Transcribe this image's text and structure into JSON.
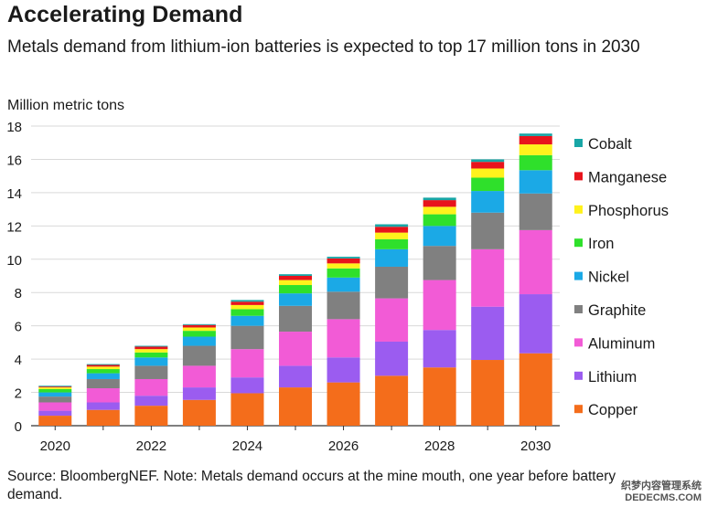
{
  "title": "Accelerating Demand",
  "subtitle": "Metals demand from lithium-ion batteries is expected to top 17 million tons in 2030",
  "source": "Source: BloombergNEF. Note: Metals demand occurs at the mine mouth, one year before battery demand.",
  "watermark": {
    "line1": "织梦内容管理系统",
    "line2": "DEDECMS.COM"
  },
  "colors": {
    "Copper": "#f46d1b",
    "Lithium": "#9b5cf0",
    "Aluminum": "#f25bd6",
    "Graphite": "#808080",
    "Nickel": "#1ba9e6",
    "Iron": "#2fe02b",
    "Phosphorus": "#fff21c",
    "Manganese": "#e8141c",
    "Cobalt": "#18a6a6",
    "grid": "#d9d9d9",
    "axis": "#333333"
  },
  "chart_data": {
    "type": "bar",
    "stacked": true,
    "title": "Accelerating Demand",
    "ylabel": "Million metric tons",
    "xlabel": "",
    "ylim": [
      0,
      18
    ],
    "yticks": [
      0,
      2,
      4,
      6,
      8,
      10,
      12,
      14,
      16,
      18
    ],
    "categories": [
      "2020",
      "2021",
      "2022",
      "2023",
      "2024",
      "2025",
      "2026",
      "2027",
      "2028",
      "2029",
      "2030"
    ],
    "xtick_labels": [
      "2020",
      "",
      "2022",
      "",
      "2024",
      "",
      "2026",
      "",
      "2028",
      "",
      "2030"
    ],
    "grid": true,
    "legend_position": "right",
    "series": [
      {
        "name": "Copper",
        "values": [
          0.6,
          0.95,
          1.2,
          1.55,
          1.95,
          2.3,
          2.6,
          3.0,
          3.5,
          3.95,
          4.35
        ]
      },
      {
        "name": "Lithium",
        "values": [
          0.3,
          0.45,
          0.6,
          0.75,
          0.95,
          1.3,
          1.5,
          2.05,
          2.25,
          3.2,
          3.55
        ]
      },
      {
        "name": "Aluminum",
        "values": [
          0.5,
          0.85,
          1.0,
          1.3,
          1.7,
          2.05,
          2.3,
          2.6,
          3.0,
          3.45,
          3.85
        ]
      },
      {
        "name": "Graphite",
        "values": [
          0.35,
          0.55,
          0.8,
          1.2,
          1.4,
          1.55,
          1.65,
          1.9,
          2.05,
          2.2,
          2.2
        ]
      },
      {
        "name": "Nickel",
        "values": [
          0.25,
          0.35,
          0.5,
          0.55,
          0.6,
          0.75,
          0.85,
          1.05,
          1.2,
          1.3,
          1.4
        ]
      },
      {
        "name": "Iron",
        "values": [
          0.2,
          0.25,
          0.3,
          0.35,
          0.4,
          0.5,
          0.55,
          0.6,
          0.7,
          0.8,
          0.9
        ]
      },
      {
        "name": "Phosphorus",
        "values": [
          0.1,
          0.15,
          0.2,
          0.2,
          0.25,
          0.3,
          0.3,
          0.4,
          0.45,
          0.55,
          0.65
        ]
      },
      {
        "name": "Manganese",
        "values": [
          0.05,
          0.1,
          0.15,
          0.15,
          0.2,
          0.25,
          0.3,
          0.35,
          0.4,
          0.4,
          0.5
        ]
      },
      {
        "name": "Cobalt",
        "values": [
          0.05,
          0.05,
          0.05,
          0.05,
          0.1,
          0.1,
          0.1,
          0.15,
          0.15,
          0.15,
          0.15
        ]
      }
    ],
    "legend_order": [
      "Cobalt",
      "Manganese",
      "Phosphorus",
      "Iron",
      "Nickel",
      "Graphite",
      "Aluminum",
      "Lithium",
      "Copper"
    ]
  }
}
